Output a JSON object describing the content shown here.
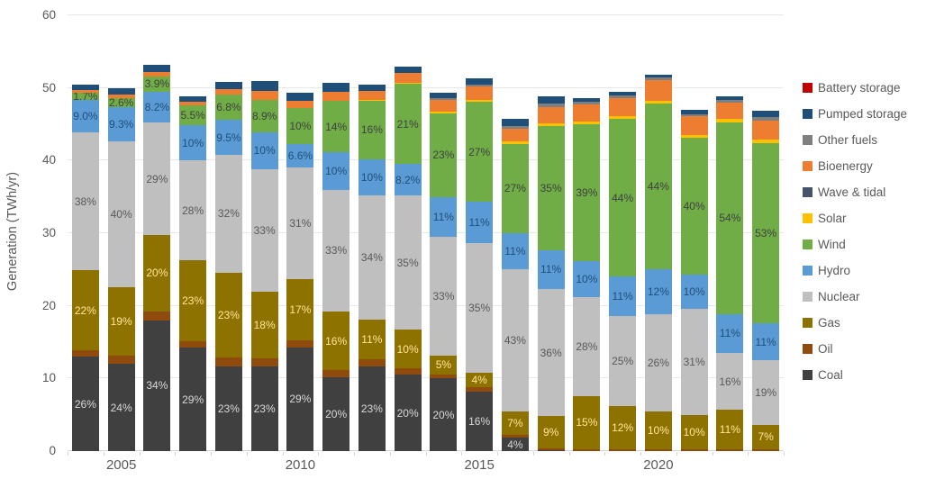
{
  "chart_data": {
    "type": "bar",
    "stacked": true,
    "title": "",
    "xlabel": "",
    "ylabel": "Generation (TWh/yr)",
    "ylim": [
      0,
      60
    ],
    "yticks": [
      0,
      10,
      20,
      30,
      40,
      50,
      60
    ],
    "grid": true,
    "categories": [
      "2004",
      "2005",
      "2006",
      "2007",
      "2008",
      "2009",
      "2010",
      "2011",
      "2012",
      "2013",
      "2014",
      "2015",
      "2016",
      "2017",
      "2018",
      "2019",
      "2020",
      "2021",
      "2022",
      "2023"
    ],
    "x_tick_labels": [
      {
        "label": "2005",
        "index": 1
      },
      {
        "label": "2010",
        "index": 6
      },
      {
        "label": "2015",
        "index": 11
      },
      {
        "label": "2020",
        "index": 16
      }
    ],
    "units": "TWh/yr",
    "series": [
      {
        "name": "Coal",
        "color": "#404040",
        "label_color": "#d9d9d9",
        "values": [
          13.0,
          12.0,
          18.0,
          14.2,
          11.7,
          11.7,
          14.3,
          10.2,
          11.6,
          10.5,
          10.0,
          8.2,
          1.8,
          0.1,
          0,
          0,
          0,
          0,
          0,
          0
        ],
        "labels": [
          "26%",
          "24%",
          "34%",
          "29%",
          "23%",
          "23%",
          "29%",
          "20%",
          "23%",
          "20%",
          "20%",
          "16%",
          "4%",
          null,
          null,
          null,
          null,
          null,
          null,
          null
        ]
      },
      {
        "name": "Oil",
        "color": "#8f4a0e",
        "values": [
          0.9,
          1.1,
          1.2,
          0.9,
          1.2,
          1.1,
          1.0,
          0.9,
          1.0,
          0.9,
          0.6,
          0.6,
          0.4,
          0.3,
          0.3,
          0.3,
          0.3,
          0.3,
          0.3,
          0.3
        ]
      },
      {
        "name": "Gas",
        "color": "#8e7200",
        "label_color": "#ffe699",
        "values": [
          11.0,
          9.5,
          10.6,
          11.2,
          11.7,
          9.2,
          8.4,
          8.1,
          5.5,
          5.3,
          2.5,
          2.0,
          3.2,
          4.4,
          7.3,
          5.9,
          5.2,
          4.7,
          5.4,
          3.3
        ],
        "labels": [
          "22%",
          "19%",
          "20%",
          "23%",
          "23%",
          "18%",
          "17%",
          "16%",
          "11%",
          "10%",
          "5%",
          "4%",
          "7%",
          "9%",
          "15%",
          "12%",
          "10%",
          "10%",
          "11%",
          "7%"
        ]
      },
      {
        "name": "Nuclear",
        "color": "#bfbfbf",
        "label_color": "#595959",
        "values": [
          19.0,
          20.0,
          15.4,
          13.7,
          16.2,
          16.8,
          15.3,
          16.8,
          17.1,
          18.5,
          16.4,
          17.9,
          19.6,
          17.5,
          13.6,
          12.4,
          13.4,
          14.6,
          7.8,
          8.9
        ],
        "labels": [
          "38%",
          "40%",
          "29%",
          "28%",
          "32%",
          "33%",
          "31%",
          "33%",
          "34%",
          "35%",
          "33%",
          "35%",
          "43%",
          "36%",
          "28%",
          "25%",
          "26%",
          "31%",
          "16%",
          "19%"
        ]
      },
      {
        "name": "Hydro",
        "color": "#5b9bd5",
        "label_color": "#1f4e79",
        "values": [
          4.5,
          4.7,
          4.3,
          4.9,
          4.8,
          5.1,
          3.3,
          5.1,
          5.0,
          4.3,
          5.5,
          5.6,
          5.0,
          5.4,
          4.9,
          5.4,
          6.2,
          4.7,
          5.4,
          5.1
        ],
        "labels": [
          "9.0%",
          "9.3%",
          "8.2%",
          "10%",
          "9.5%",
          "10%",
          "6.6%",
          "10%",
          "10%",
          "8.2%",
          "11%",
          "11%",
          "11%",
          "11%",
          "10%",
          "11%",
          "12%",
          "10%",
          "11%",
          "11%"
        ]
      },
      {
        "name": "Wind",
        "color": "#70ad47",
        "label_color": "#404040",
        "values": [
          0.9,
          1.3,
          2.1,
          2.7,
          3.5,
          4.5,
          4.9,
          7.1,
          8.1,
          11.1,
          11.5,
          13.8,
          12.3,
          17.0,
          18.9,
          21.7,
          22.7,
          18.8,
          26.3,
          24.8
        ],
        "labels": [
          "1.7%",
          "2.6%",
          "3.9%",
          "5.5%",
          "6.8%",
          "8.9%",
          "10%",
          "14%",
          "16%",
          "21%",
          "23%",
          "27%",
          "27%",
          "35%",
          "39%",
          "44%",
          "44%",
          "40%",
          "54%",
          "53%"
        ]
      },
      {
        "name": "Solar",
        "color": "#ffc000",
        "values": [
          0,
          0,
          0,
          0,
          0,
          0,
          0,
          0,
          0.1,
          0.1,
          0.2,
          0.3,
          0.3,
          0.4,
          0.4,
          0.4,
          0.4,
          0.4,
          0.5,
          0.5
        ]
      },
      {
        "name": "Wave & tidal",
        "color": "#44546a",
        "values": [
          0,
          0,
          0,
          0,
          0,
          0,
          0,
          0,
          0,
          0,
          0,
          0,
          0,
          0,
          0,
          0,
          0,
          0,
          0,
          0
        ]
      },
      {
        "name": "Bioenergy",
        "color": "#ed7d31",
        "values": [
          0.4,
          0.5,
          0.6,
          0.5,
          0.7,
          1.2,
          1.0,
          1.3,
          1.2,
          1.4,
          1.6,
          1.8,
          1.8,
          2.3,
          2.3,
          2.5,
          2.9,
          2.6,
          2.3,
          2.6
        ]
      },
      {
        "name": "Other fuels",
        "color": "#7f7f7f",
        "values": [
          0,
          0,
          0,
          0,
          0,
          0,
          0,
          0,
          0,
          0,
          0.3,
          0.3,
          0.4,
          0.5,
          0.4,
          0.4,
          0.3,
          0.3,
          0.4,
          0.5
        ]
      },
      {
        "name": "Pumped storage",
        "color": "#1f4e79",
        "values": [
          0.7,
          0.9,
          1.0,
          0.8,
          1.0,
          1.3,
          1.1,
          1.2,
          0.9,
          0.8,
          0.8,
          0.8,
          0.9,
          0.9,
          0.5,
          0.5,
          0.4,
          0.6,
          0.5,
          0.8
        ]
      },
      {
        "name": "Battery storage",
        "color": "#c00000",
        "values": [
          0,
          0,
          0,
          0,
          0,
          0,
          0,
          0,
          0,
          0,
          0,
          0,
          0,
          0,
          0,
          0,
          0,
          0,
          0,
          0
        ]
      }
    ],
    "legend": {
      "position": "right",
      "order": "top-to-bottom reverse of stack"
    }
  }
}
